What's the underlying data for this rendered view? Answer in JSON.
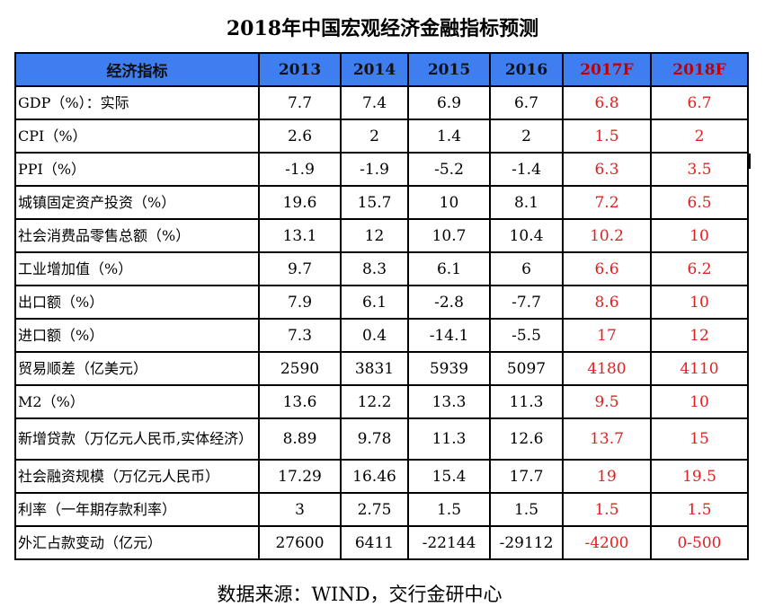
{
  "title": "2018年中国宏观经济金融指标预测",
  "headers": [
    "经济指标",
    "2013",
    "2014",
    "2015",
    "2016",
    "2017F",
    "2018F"
  ],
  "forecast_color": "#e02020",
  "header_bg": "#3f7ef0",
  "rows": [
    {
      "label": "GDP（%）：实际",
      "values": [
        "7.7",
        "7.4",
        "6.9",
        "6.7",
        "6.8",
        "6.7"
      ]
    },
    {
      "label": "CPI（%）",
      "values": [
        "2.6",
        "2",
        "1.4",
        "2",
        "1.5",
        "2"
      ]
    },
    {
      "label": "PPI（%）",
      "values": [
        "-1.9",
        "-1.9",
        "-5.2",
        "-1.4",
        "6.3",
        "3.5"
      ]
    },
    {
      "label": "城镇固定资产投资（%）",
      "values": [
        "19.6",
        "15.7",
        "10",
        "8.1",
        "7.2",
        "6.5"
      ]
    },
    {
      "label": "社会消费品零售总额（%）",
      "values": [
        "13.1",
        "12",
        "10.7",
        "10.4",
        "10.2",
        "10"
      ]
    },
    {
      "label": "工业增加值（%）",
      "values": [
        "9.7",
        "8.3",
        "6.1",
        "6",
        "6.6",
        "6.2"
      ]
    },
    {
      "label": "出口额（%）",
      "values": [
        "7.9",
        "6.1",
        "-2.8",
        "-7.7",
        "8.6",
        "10"
      ]
    },
    {
      "label": "进口额（%）",
      "values": [
        "7.3",
        "0.4",
        "-14.1",
        "-5.5",
        "17",
        "12"
      ]
    },
    {
      "label": "贸易顺差（亿美元）",
      "values": [
        "2590",
        "3831",
        "5939",
        "5097",
        "4180",
        "4110"
      ]
    },
    {
      "label": "M2（%）",
      "values": [
        "13.6",
        "12.2",
        "13.3",
        "11.3",
        "9.5",
        "10"
      ]
    },
    {
      "label": "新增贷款（万亿元人民币,实体经济）",
      "values": [
        "8.89",
        "9.78",
        "11.3",
        "12.6",
        "13.7",
        "15"
      ]
    },
    {
      "label": "社会融资规模（万亿元人民币）",
      "values": [
        "17.29",
        "16.46",
        "15.4",
        "17.7",
        "19",
        "19.5"
      ]
    },
    {
      "label": "利率（一年期存款利率）",
      "values": [
        "3",
        "2.75",
        "1.5",
        "1.5",
        "1.5",
        "1.5"
      ]
    },
    {
      "label": "外汇占款变动（亿元）",
      "values": [
        "27600",
        "6411",
        "-22144",
        "-29112",
        "-4200",
        "0-500"
      ]
    }
  ],
  "source": "数据来源：WIND，交行金研中心"
}
